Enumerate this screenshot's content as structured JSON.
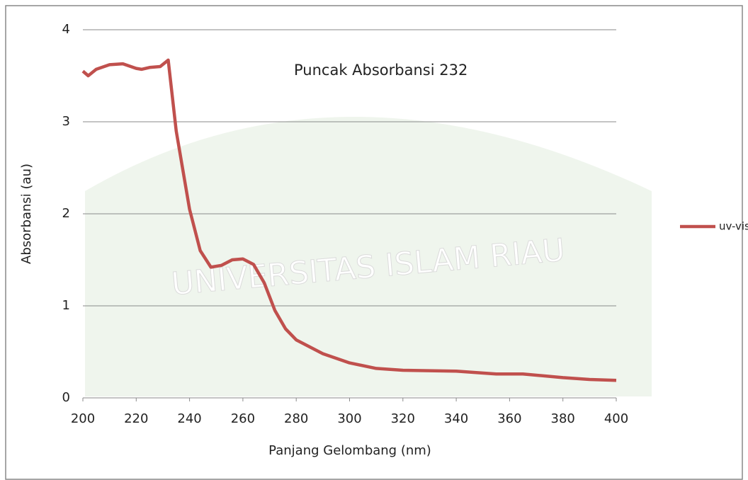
{
  "chart_data": {
    "type": "line",
    "x_label": "Panjang Gelombang (nm)",
    "y_label": "Absorbansi (au)",
    "annotation": "Puncak Absorbansi 232",
    "watermark": "UNIVERSITAS ISLAM RIAU",
    "x": [
      200,
      202,
      205,
      210,
      215,
      220,
      222,
      225,
      229,
      232,
      235,
      240,
      244,
      248,
      252,
      256,
      260,
      264,
      268,
      272,
      276,
      280,
      290,
      300,
      310,
      320,
      340,
      355,
      365,
      380,
      390,
      400
    ],
    "series": [
      {
        "name": "uv-vis",
        "color": "#c0504d",
        "values": [
          3.55,
          3.5,
          3.57,
          3.62,
          3.63,
          3.58,
          3.57,
          3.59,
          3.6,
          3.67,
          2.9,
          2.05,
          1.6,
          1.42,
          1.44,
          1.5,
          1.51,
          1.45,
          1.25,
          0.95,
          0.75,
          0.63,
          0.48,
          0.38,
          0.32,
          0.3,
          0.29,
          0.26,
          0.26,
          0.22,
          0.2,
          0.19
        ]
      }
    ],
    "xlim": [
      200,
      400
    ],
    "xticks": [
      200,
      220,
      240,
      260,
      280,
      300,
      320,
      340,
      360,
      380,
      400
    ],
    "ylim": [
      0,
      4
    ],
    "yticks": [
      0,
      1,
      2,
      3,
      4
    ],
    "grid": true,
    "legend": "right"
  }
}
